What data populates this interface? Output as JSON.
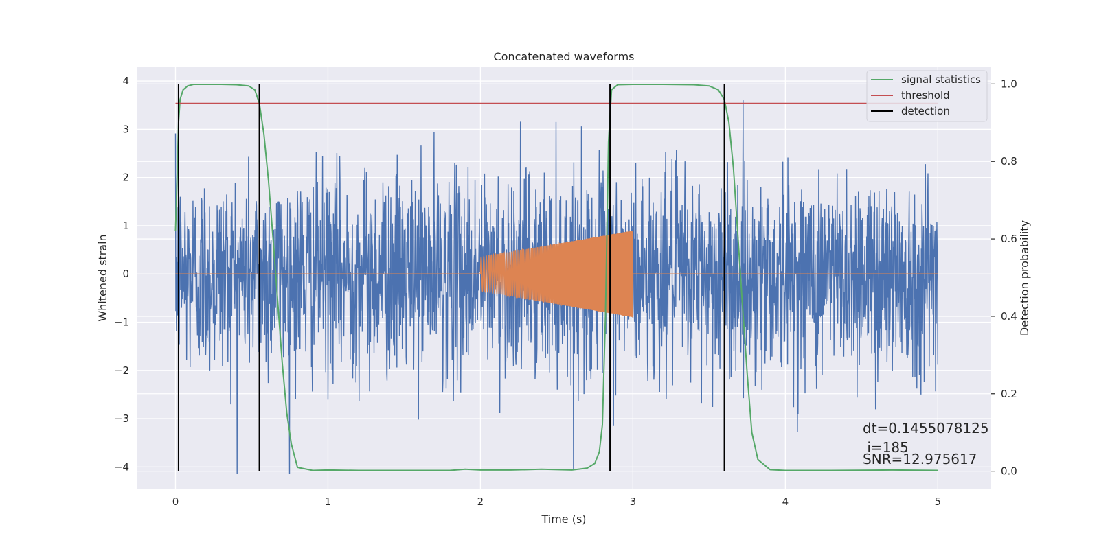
{
  "chart_data": {
    "type": "line",
    "title": "Concatenated waveforms",
    "xlabel": "Time (s)",
    "ylabel": "Whitened strain",
    "y2label": "Detection probability",
    "xlim": [
      -0.25,
      5.35
    ],
    "ylim": [
      -4.45,
      4.3
    ],
    "y2lim": [
      -0.045,
      1.045
    ],
    "xticks": [
      0,
      1,
      2,
      3,
      4,
      5
    ],
    "yticks": [
      -4,
      -3,
      -2,
      -1,
      0,
      1,
      2,
      3,
      4
    ],
    "y2ticks": [
      0.0,
      0.2,
      0.4,
      0.6,
      0.8,
      1.0
    ],
    "xtick_labels": [
      "0",
      "1",
      "2",
      "3",
      "4",
      "5"
    ],
    "ytick_labels": [
      "−4",
      "−3",
      "−2",
      "−1",
      "0",
      "1",
      "2",
      "3",
      "4"
    ],
    "y2tick_labels": [
      "0.0",
      "0.2",
      "0.4",
      "0.6",
      "0.8",
      "1.0"
    ],
    "grid": true,
    "legend_position": "top-right",
    "legend": [
      {
        "label": "signal statistics",
        "color": "#55a868"
      },
      {
        "label": "threshold",
        "color": "#c44e52"
      },
      {
        "label": "detection",
        "color": "#000000"
      }
    ],
    "series": [
      {
        "role": "whitened-strain",
        "color": "#4c72b0",
        "x_range": [
          0,
          5
        ],
        "peak_abs": 4.15
      },
      {
        "role": "injected-chirp",
        "color": "#dd8452",
        "x_range": [
          0,
          5
        ],
        "chirp_start": 2.0,
        "chirp_end": 3.0,
        "start_amplitude": 0.35,
        "end_amplitude": 0.9
      },
      {
        "name": "signal statistics",
        "axis": "y2",
        "color": "#55a868",
        "x": [
          0,
          0.01,
          0.02,
          0.03,
          0.05,
          0.08,
          0.12,
          0.2,
          0.3,
          0.4,
          0.48,
          0.52,
          0.55,
          0.58,
          0.61,
          0.64,
          0.67,
          0.7,
          0.73,
          0.76,
          0.8,
          0.9,
          1.0,
          1.2,
          1.5,
          1.8,
          1.9,
          2.0,
          2.2,
          2.4,
          2.6,
          2.7,
          2.75,
          2.78,
          2.8,
          2.82,
          2.84,
          2.86,
          2.9,
          3.0,
          3.2,
          3.4,
          3.5,
          3.56,
          3.6,
          3.63,
          3.66,
          3.69,
          3.72,
          3.75,
          3.78,
          3.82,
          3.9,
          4.0,
          4.3,
          4.7,
          5.0
        ],
        "y": [
          0.62,
          0.75,
          0.9,
          0.96,
          0.985,
          0.995,
          0.999,
          0.999,
          0.999,
          0.998,
          0.995,
          0.985,
          0.95,
          0.87,
          0.75,
          0.6,
          0.44,
          0.28,
          0.15,
          0.07,
          0.01,
          0.002,
          0.003,
          0.002,
          0.002,
          0.002,
          0.005,
          0.003,
          0.003,
          0.005,
          0.003,
          0.008,
          0.02,
          0.05,
          0.12,
          0.4,
          0.85,
          0.985,
          0.998,
          0.999,
          0.999,
          0.998,
          0.995,
          0.985,
          0.96,
          0.9,
          0.78,
          0.6,
          0.42,
          0.25,
          0.1,
          0.03,
          0.004,
          0.002,
          0.002,
          0.003,
          0.002
        ]
      },
      {
        "name": "threshold",
        "axis": "y2",
        "color": "#c44e52",
        "x": [
          0,
          5
        ],
        "y": [
          0.95,
          0.95
        ]
      }
    ],
    "detections": [
      0.02,
      0.55,
      2.85,
      3.6
    ],
    "annotations": {
      "dt": "dt=0.1455078125",
      "i": " i=185",
      "snr": "SNR=12.975617"
    }
  }
}
